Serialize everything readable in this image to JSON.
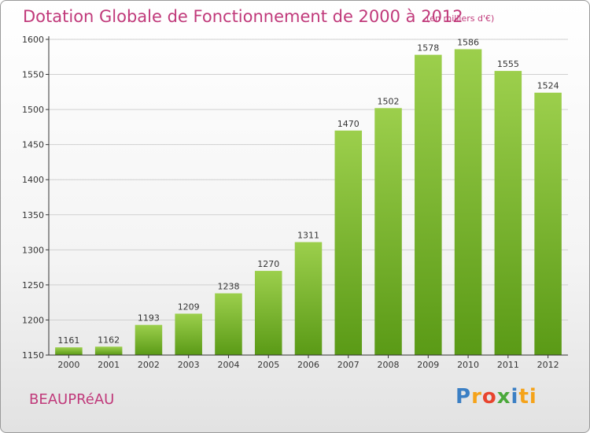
{
  "header": {
    "title": "Dotation Globale de Fonctionnement de 2000 à 2012",
    "unit": "(en milliers d'€)"
  },
  "footer": {
    "commune": "BEAUPRéAU",
    "logo_letters": [
      "P",
      "r",
      "o",
      "x",
      "i",
      "t",
      "i"
    ]
  },
  "colors": {
    "title": "#c0397a",
    "bar_top": "#9ccf4c",
    "bar_bottom": "#5a9a16",
    "grid": "#d0d0d0"
  },
  "chart_data": {
    "type": "bar",
    "categories": [
      "2000",
      "2001",
      "2002",
      "2003",
      "2004",
      "2005",
      "2006",
      "2007",
      "2008",
      "2009",
      "2010",
      "2011",
      "2012"
    ],
    "values": [
      1161,
      1162,
      1193,
      1209,
      1238,
      1270,
      1311,
      1470,
      1502,
      1578,
      1586,
      1555,
      1524
    ],
    "data_labels": [
      "1161",
      "1162",
      "1193",
      "1209",
      "1238",
      "1270",
      "1311",
      "1470",
      "1502",
      "1578",
      "1586",
      "1555",
      "1524"
    ],
    "title": "Dotation Globale de Fonctionnement de 2000 à 2012",
    "xlabel": "",
    "ylabel": "",
    "ylim": [
      1150,
      1600
    ],
    "yticks": [
      "1150",
      "1200",
      "1250",
      "1300",
      "1350",
      "1400",
      "1450",
      "1500",
      "1550",
      "1600"
    ],
    "grid": true,
    "legend": "none"
  }
}
